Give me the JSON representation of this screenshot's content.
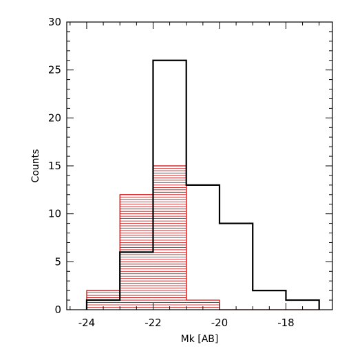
{
  "chart_data": {
    "type": "bar",
    "title": "",
    "xlabel": "Mk [AB]",
    "ylabel": "Counts",
    "xlim": [
      -24.6,
      -16.6
    ],
    "ylim": [
      0,
      30
    ],
    "xticks": [
      -24,
      -22,
      -20,
      -18
    ],
    "xtick_labels": [
      "-24",
      "-22",
      "-20",
      "-18"
    ],
    "yticks": [
      0,
      5,
      10,
      15,
      20,
      25,
      30
    ],
    "ytick_labels": [
      "0",
      "5",
      "10",
      "15",
      "20",
      "25",
      "30"
    ],
    "grid": false,
    "legend": "none",
    "bin_edges": [
      -24,
      -23,
      -22,
      -21,
      -20,
      -19,
      -18,
      -17
    ],
    "series": [
      {
        "style": "step-outline",
        "color": "#000000",
        "counts": [
          1,
          6,
          26,
          13,
          9,
          2,
          1
        ]
      },
      {
        "style": "hatched-horizontal",
        "color": "#cc0000",
        "counts": [
          2,
          12,
          15,
          1,
          0,
          0,
          0
        ]
      }
    ]
  }
}
